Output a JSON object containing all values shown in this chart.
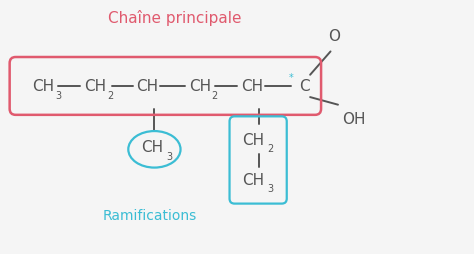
{
  "title": "Chaîne principale",
  "title_color": "#e05a6e",
  "ramif_label": "Ramifications",
  "ramif_color": "#3bbdd4",
  "bg_color": "#f5f5f5",
  "chain_color": "#555555",
  "box_color": "#e05a6e",
  "cyan_color": "#3bbdd4",
  "figsize": [
    4.74,
    2.55
  ],
  "dpi": 100,
  "xlim": [
    0,
    9.5
  ],
  "ylim": [
    0,
    5.0
  ]
}
